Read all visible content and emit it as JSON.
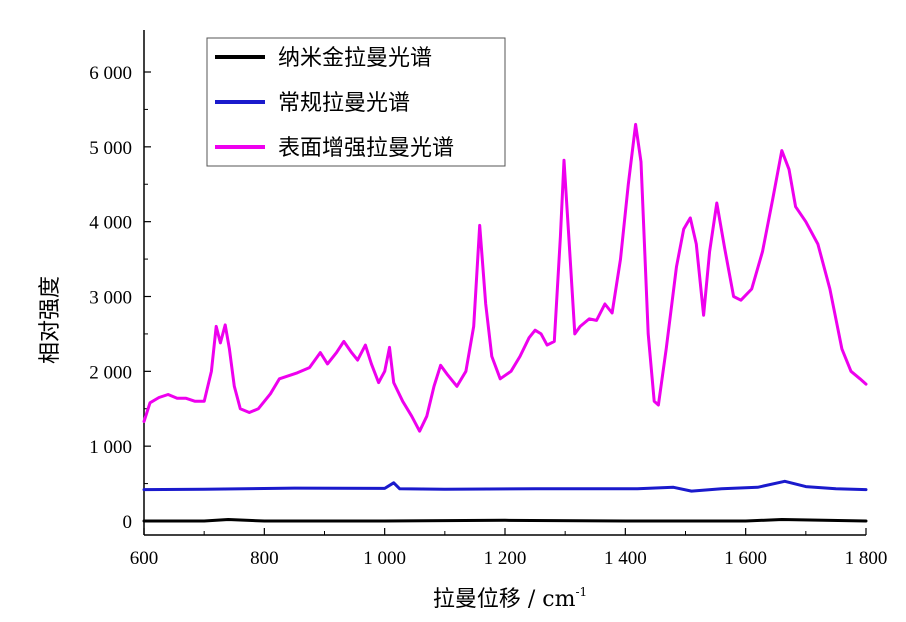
{
  "chart_data": {
    "type": "line",
    "title": "",
    "xlabel": "拉曼位移 / cm",
    "xlabel_superscript": "-1",
    "ylabel": "相对强度",
    "xlim": [
      600,
      1800
    ],
    "ylim": [
      0,
      6000
    ],
    "xticks": [
      600,
      800,
      1000,
      1200,
      1400,
      1600,
      1800
    ],
    "xtick_labels": [
      "600",
      "800",
      "1 000",
      "1 200",
      "1 400",
      "1 600",
      "1 800"
    ],
    "yticks": [
      0,
      1000,
      2000,
      3000,
      4000,
      5000,
      6000
    ],
    "ytick_labels": [
      "0",
      "1 000",
      "2 000",
      "3 000",
      "4 000",
      "5 000",
      "6 000"
    ],
    "grid": false,
    "legend_position": "top-left",
    "series": [
      {
        "name": "纳米金拉曼光谱",
        "color": "#000000",
        "points": [
          [
            600,
            0
          ],
          [
            700,
            0
          ],
          [
            740,
            20
          ],
          [
            800,
            0
          ],
          [
            1000,
            0
          ],
          [
            1200,
            10
          ],
          [
            1400,
            0
          ],
          [
            1600,
            0
          ],
          [
            1660,
            20
          ],
          [
            1800,
            0
          ]
        ]
      },
      {
        "name": "常规拉曼光谱",
        "color": "#1a1acc",
        "points": [
          [
            600,
            420
          ],
          [
            700,
            425
          ],
          [
            850,
            440
          ],
          [
            1000,
            435
          ],
          [
            1015,
            510
          ],
          [
            1025,
            430
          ],
          [
            1100,
            425
          ],
          [
            1250,
            430
          ],
          [
            1420,
            430
          ],
          [
            1480,
            450
          ],
          [
            1510,
            400
          ],
          [
            1560,
            430
          ],
          [
            1620,
            450
          ],
          [
            1665,
            530
          ],
          [
            1700,
            460
          ],
          [
            1750,
            430
          ],
          [
            1800,
            420
          ]
        ]
      },
      {
        "name": "表面增强拉曼光谱",
        "color": "#ee00ee",
        "points": [
          [
            600,
            1330
          ],
          [
            610,
            1580
          ],
          [
            625,
            1650
          ],
          [
            640,
            1690
          ],
          [
            655,
            1640
          ],
          [
            670,
            1640
          ],
          [
            685,
            1600
          ],
          [
            700,
            1600
          ],
          [
            712,
            2000
          ],
          [
            720,
            2600
          ],
          [
            727,
            2380
          ],
          [
            735,
            2620
          ],
          [
            742,
            2300
          ],
          [
            750,
            1800
          ],
          [
            760,
            1500
          ],
          [
            775,
            1450
          ],
          [
            790,
            1500
          ],
          [
            810,
            1700
          ],
          [
            825,
            1900
          ],
          [
            840,
            1940
          ],
          [
            855,
            1980
          ],
          [
            875,
            2050
          ],
          [
            893,
            2250
          ],
          [
            905,
            2100
          ],
          [
            920,
            2250
          ],
          [
            932,
            2400
          ],
          [
            945,
            2250
          ],
          [
            955,
            2150
          ],
          [
            968,
            2350
          ],
          [
            978,
            2100
          ],
          [
            990,
            1850
          ],
          [
            1000,
            2000
          ],
          [
            1008,
            2320
          ],
          [
            1015,
            1850
          ],
          [
            1030,
            1600
          ],
          [
            1045,
            1400
          ],
          [
            1058,
            1200
          ],
          [
            1070,
            1400
          ],
          [
            1082,
            1800
          ],
          [
            1093,
            2080
          ],
          [
            1105,
            1950
          ],
          [
            1120,
            1800
          ],
          [
            1135,
            2000
          ],
          [
            1148,
            2600
          ],
          [
            1158,
            3950
          ],
          [
            1168,
            2900
          ],
          [
            1178,
            2200
          ],
          [
            1192,
            1900
          ],
          [
            1210,
            2000
          ],
          [
            1225,
            2200
          ],
          [
            1240,
            2450
          ],
          [
            1250,
            2550
          ],
          [
            1260,
            2500
          ],
          [
            1270,
            2350
          ],
          [
            1282,
            2400
          ],
          [
            1292,
            3800
          ],
          [
            1298,
            4820
          ],
          [
            1306,
            3800
          ],
          [
            1316,
            2500
          ],
          [
            1325,
            2600
          ],
          [
            1340,
            2700
          ],
          [
            1352,
            2680
          ],
          [
            1366,
            2900
          ],
          [
            1378,
            2780
          ],
          [
            1392,
            3500
          ],
          [
            1405,
            4500
          ],
          [
            1417,
            5300
          ],
          [
            1426,
            4800
          ],
          [
            1438,
            2500
          ],
          [
            1448,
            1600
          ],
          [
            1455,
            1550
          ],
          [
            1468,
            2300
          ],
          [
            1485,
            3400
          ],
          [
            1497,
            3900
          ],
          [
            1508,
            4050
          ],
          [
            1518,
            3700
          ],
          [
            1530,
            2750
          ],
          [
            1540,
            3600
          ],
          [
            1552,
            4250
          ],
          [
            1565,
            3650
          ],
          [
            1580,
            3000
          ],
          [
            1592,
            2950
          ],
          [
            1610,
            3100
          ],
          [
            1628,
            3600
          ],
          [
            1645,
            4300
          ],
          [
            1660,
            4950
          ],
          [
            1672,
            4700
          ],
          [
            1683,
            4200
          ],
          [
            1700,
            4000
          ],
          [
            1720,
            3700
          ],
          [
            1740,
            3100
          ],
          [
            1760,
            2300
          ],
          [
            1775,
            2000
          ],
          [
            1790,
            1900
          ],
          [
            1800,
            1830
          ]
        ]
      }
    ]
  }
}
